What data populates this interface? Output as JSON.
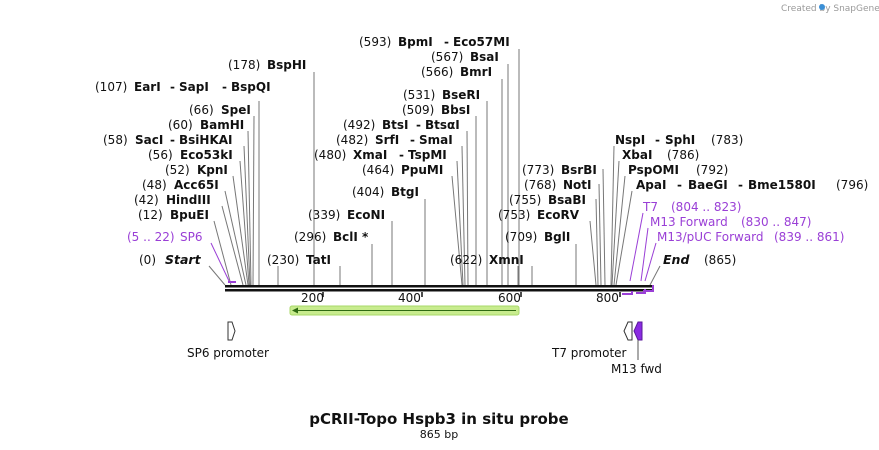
{
  "watermark": "Created by SnapGene",
  "map_title": "pCRII-Topo Hspb3 in situ probe",
  "map_length": "865 bp",
  "ruler": [
    "200",
    "400",
    "600",
    "800"
  ],
  "enzymes": [
    {
      "pos": "(0)",
      "names": [
        "Start"
      ]
    },
    {
      "pos": "(12)",
      "names": [
        "BpuEI"
      ]
    },
    {
      "pos": "(42)",
      "names": [
        "HindIII"
      ]
    },
    {
      "pos": "(48)",
      "names": [
        "Acc65I"
      ]
    },
    {
      "pos": "(52)",
      "names": [
        "KpnI"
      ]
    },
    {
      "pos": "(56)",
      "names": [
        "Eco53kI"
      ]
    },
    {
      "pos": "(58)",
      "names": [
        "SacI",
        "BsiHKAI"
      ]
    },
    {
      "pos": "(60)",
      "names": [
        "BamHI"
      ]
    },
    {
      "pos": "(66)",
      "names": [
        "SpeI"
      ]
    },
    {
      "pos": "(107)",
      "names": [
        "EarI",
        "SapI",
        "BspQI"
      ]
    },
    {
      "pos": "(178)",
      "names": [
        "BspHI"
      ]
    },
    {
      "pos": "(230)",
      "names": [
        "TatI"
      ]
    },
    {
      "pos": "(296)",
      "names": [
        "BclI *"
      ]
    },
    {
      "pos": "(339)",
      "names": [
        "EcoNI"
      ]
    },
    {
      "pos": "(404)",
      "names": [
        "BtgI"
      ]
    },
    {
      "pos": "(464)",
      "names": [
        "PpuMI"
      ]
    },
    {
      "pos": "(480)",
      "names": [
        "XmaI",
        "TspMI"
      ]
    },
    {
      "pos": "(482)",
      "names": [
        "SrfI",
        "SmaI"
      ]
    },
    {
      "pos": "(492)",
      "names": [
        "BtsI",
        "BtsαI"
      ]
    },
    {
      "pos": "(509)",
      "names": [
        "BbsI"
      ]
    },
    {
      "pos": "(531)",
      "names": [
        "BseRI"
      ]
    },
    {
      "pos": "(566)",
      "names": [
        "BmrI"
      ]
    },
    {
      "pos": "(567)",
      "names": [
        "BsaI"
      ]
    },
    {
      "pos": "(593)",
      "names": [
        "BpmI",
        "Eco57MI"
      ]
    },
    {
      "pos": "(622)",
      "names": [
        "XmnI"
      ]
    },
    {
      "pos": "(709)",
      "names": [
        "BglI"
      ]
    },
    {
      "pos": "(753)",
      "names": [
        "EcoRV"
      ]
    },
    {
      "pos": "(755)",
      "names": [
        "BsaBI"
      ]
    },
    {
      "pos": "(768)",
      "names": [
        "NotI"
      ]
    },
    {
      "pos": "(773)",
      "names": [
        "BsrBI"
      ]
    },
    {
      "pos": "(783)",
      "names": [
        "NspI",
        "SphI"
      ]
    },
    {
      "pos": "(786)",
      "names": [
        "XbaI"
      ]
    },
    {
      "pos": "(792)",
      "names": [
        "PspOMI"
      ]
    },
    {
      "pos": "(796)",
      "names": [
        "ApaI",
        "BaeGI",
        "Bme1580I"
      ]
    },
    {
      "pos": "(865)",
      "names": [
        "End"
      ]
    }
  ],
  "primers": [
    {
      "name": "SP6",
      "range": "(5 .. 22)"
    },
    {
      "name": "T7",
      "range": "(804 .. 823)"
    },
    {
      "name": "M13 Forward",
      "range": "(830 .. 847)"
    },
    {
      "name": "M13/pUC Forward",
      "range": "(839 .. 861)"
    }
  ],
  "features": [
    "SP6 promoter",
    "T7 promoter",
    "M13 fwd"
  ],
  "colors": {
    "primer": "#9a3fd6",
    "orf_fill": "#c8ec8e",
    "orf_stroke": "#7fbf3f",
    "m13_fill": "#8a2be2"
  }
}
